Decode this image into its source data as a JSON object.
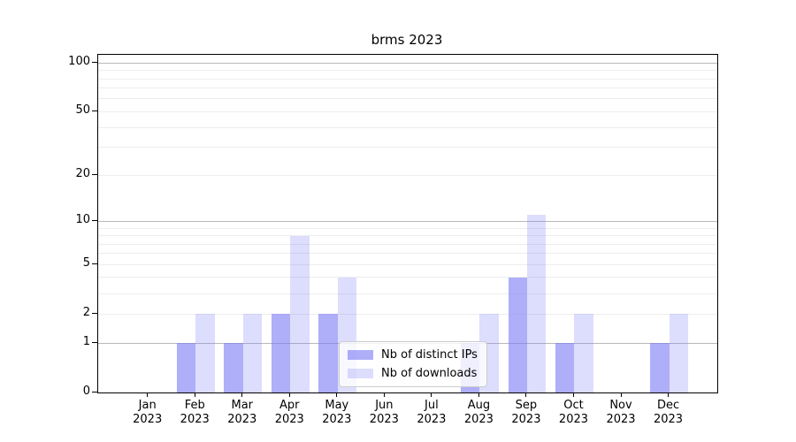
{
  "chart_data": {
    "type": "bar",
    "title": "brms 2023",
    "categories": [
      "Jan",
      "Feb",
      "Mar",
      "Apr",
      "May",
      "Jun",
      "Jul",
      "Aug",
      "Sep",
      "Oct",
      "Nov",
      "Dec"
    ],
    "year": "2023",
    "series": [
      {
        "name": "Nb of distinct IPs",
        "color": "rgba(125,125,246,0.62)",
        "values": [
          0,
          1,
          1,
          2,
          2,
          0,
          0,
          1,
          4,
          1,
          0,
          1
        ]
      },
      {
        "name": "Nb of downloads",
        "color": "rgba(125,125,246,0.26)",
        "values": [
          0,
          2,
          2,
          8,
          4,
          0,
          0,
          2,
          11,
          2,
          0,
          2
        ]
      }
    ],
    "yscale": "log1p",
    "ylim": [
      0,
      112.2
    ],
    "y_ticks": [
      0,
      1,
      2,
      5,
      10,
      20,
      50,
      100
    ],
    "y_major_gridlines": [
      1,
      10,
      100
    ],
    "y_minor_gridlines": [
      2,
      3,
      4,
      5,
      6,
      7,
      8,
      9,
      20,
      30,
      40,
      50,
      60,
      70,
      80,
      90
    ],
    "grid": true,
    "grid_major_color": "#b9b9b9",
    "grid_minor_color": "#ededed",
    "legend_position": "lower center",
    "xlabel": "",
    "ylabel": ""
  }
}
